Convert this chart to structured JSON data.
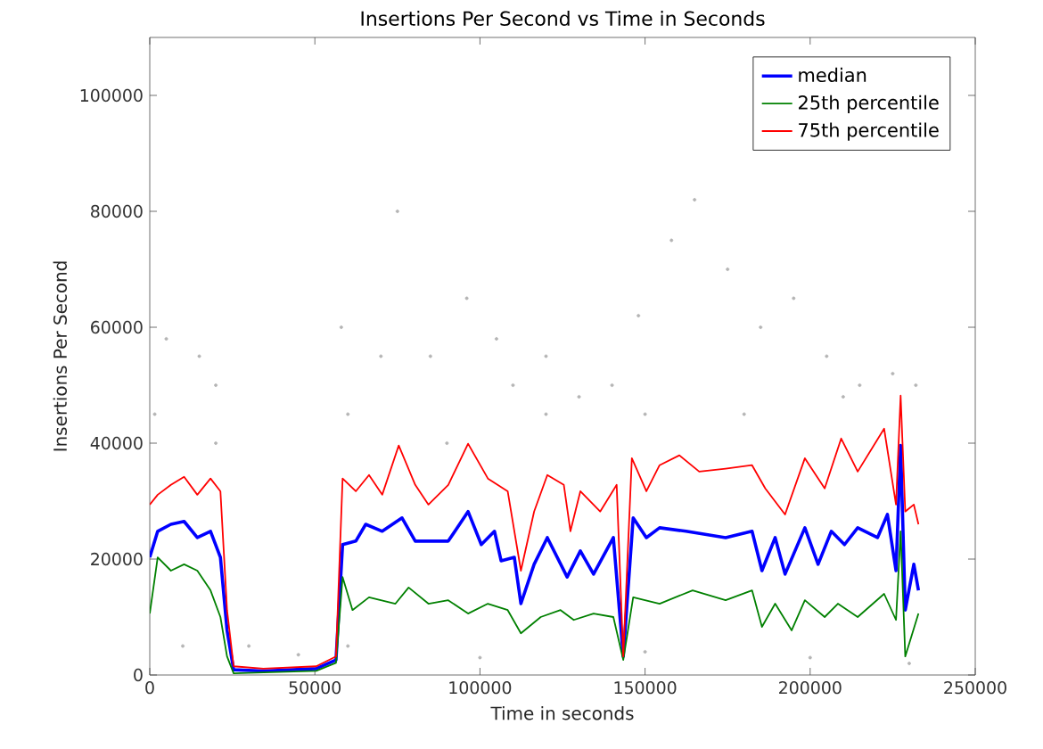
{
  "chart_data": {
    "type": "line",
    "title": "Insertions Per Second vs Time in Seconds",
    "xlabel": "Time in seconds",
    "ylabel": "Insertions Per Second",
    "xlim": [
      0,
      250000
    ],
    "ylim": [
      0,
      110000
    ],
    "xticks": [
      0,
      50000,
      100000,
      150000,
      200000,
      250000
    ],
    "yticks": [
      0,
      20000,
      40000,
      60000,
      80000,
      100000
    ],
    "legend": "top right",
    "marker": "none",
    "line_style": "solid",
    "series": [
      {
        "type": "scatter",
        "color": "#b4b4b4",
        "x": [
          1500,
          5000,
          15000,
          20000,
          30000,
          45000,
          58000,
          70000,
          75000,
          85000,
          96000,
          105000,
          110000,
          120000,
          130000,
          140000,
          148000,
          158000,
          165000,
          175000,
          185000,
          195000,
          205000,
          215000,
          225000,
          232000,
          10000,
          60000,
          100000,
          150000,
          200000,
          230000,
          20000,
          60000,
          90000,
          120000,
          150000,
          180000,
          210000
        ],
        "values": [
          45000,
          58000,
          55000,
          50000,
          5000,
          3500,
          60000,
          55000,
          80000,
          55000,
          65000,
          58000,
          50000,
          55000,
          48000,
          50000,
          62000,
          75000,
          82000,
          70000,
          60000,
          65000,
          55000,
          50000,
          52000,
          50000,
          5000,
          5000,
          3000,
          4000,
          3000,
          2000,
          40000,
          45000,
          40000,
          45000,
          45000,
          45000,
          48000
        ]
      },
      {
        "name": "median",
        "color": "#0000ff",
        "x": [
          0,
          2400,
          6400,
          10400,
          14400,
          18400,
          21400,
          23400,
          25400,
          34400,
          50400,
          56400,
          58400,
          62400,
          65400,
          70400,
          76400,
          80400,
          90400,
          96400,
          100400,
          104400,
          106400,
          110400,
          112400,
          116400,
          120400,
          126400,
          130400,
          134400,
          140400,
          143400,
          146400,
          150400,
          154400,
          162400,
          174400,
          182400,
          185400,
          189400,
          192400,
          198400,
          202400,
          206400,
          210400,
          214400,
          220400,
          223400,
          226000,
          227400,
          228800,
          231400,
          232800
        ],
        "values": [
          20300,
          24800,
          26000,
          26500,
          23700,
          24800,
          20300,
          7700,
          900,
          700,
          1100,
          2600,
          22500,
          23100,
          26000,
          24800,
          27100,
          23100,
          23100,
          28200,
          22500,
          24800,
          19700,
          20300,
          12300,
          19100,
          23700,
          16900,
          21400,
          17400,
          23700,
          3200,
          27100,
          23700,
          25400,
          24800,
          23700,
          24800,
          18000,
          23700,
          17400,
          25400,
          19100,
          24800,
          22500,
          25400,
          23700,
          27700,
          18000,
          39600,
          11200,
          19100,
          14600
        ]
      },
      {
        "name": "25th percentile",
        "color": "#008000",
        "x": [
          0,
          2400,
          6400,
          10400,
          14400,
          18400,
          21400,
          23400,
          25400,
          50400,
          56400,
          58400,
          61400,
          66400,
          74400,
          78400,
          84400,
          90400,
          96400,
          102400,
          108400,
          112400,
          118400,
          124400,
          128400,
          134400,
          140400,
          143400,
          146400,
          154400,
          164400,
          174400,
          182400,
          185400,
          189400,
          194400,
          198400,
          204400,
          208400,
          214400,
          222400,
          226000,
          227400,
          228800,
          232800
        ],
        "values": [
          10600,
          20300,
          18000,
          19100,
          18000,
          14600,
          10000,
          3200,
          300,
          700,
          2100,
          16900,
          11200,
          13400,
          12300,
          15100,
          12300,
          12900,
          10600,
          12300,
          11200,
          7200,
          10000,
          11200,
          9500,
          10600,
          10000,
          2600,
          13400,
          12300,
          14600,
          12900,
          14600,
          8300,
          12300,
          7700,
          12900,
          10000,
          12300,
          10000,
          14000,
          9500,
          24800,
          3200,
          10600
        ]
      },
      {
        "name": "75th percentile",
        "color": "#ff0000",
        "x": [
          0,
          2400,
          6400,
          10400,
          14400,
          18400,
          21400,
          23400,
          25400,
          34400,
          50400,
          56400,
          58400,
          62400,
          66400,
          70400,
          75400,
          80400,
          84400,
          90400,
          96400,
          102400,
          108400,
          112400,
          116400,
          120400,
          125400,
          127400,
          130400,
          136400,
          141400,
          143400,
          146000,
          150400,
          154400,
          160400,
          166400,
          174400,
          182400,
          186400,
          192400,
          198400,
          204400,
          209400,
          214400,
          222400,
          226000,
          227400,
          228800,
          231400,
          232800
        ],
        "values": [
          29400,
          31100,
          32800,
          34200,
          31100,
          33900,
          31700,
          11200,
          1500,
          1100,
          1500,
          3200,
          33900,
          31700,
          34500,
          31100,
          39600,
          32800,
          29400,
          32800,
          39900,
          33900,
          31700,
          18000,
          28200,
          34500,
          32800,
          24800,
          31700,
          28200,
          32800,
          3200,
          37400,
          31700,
          36200,
          37900,
          35100,
          35600,
          36200,
          32200,
          27700,
          37400,
          32200,
          40800,
          35100,
          42500,
          29400,
          48200,
          28200,
          29400,
          26000
        ]
      }
    ]
  }
}
